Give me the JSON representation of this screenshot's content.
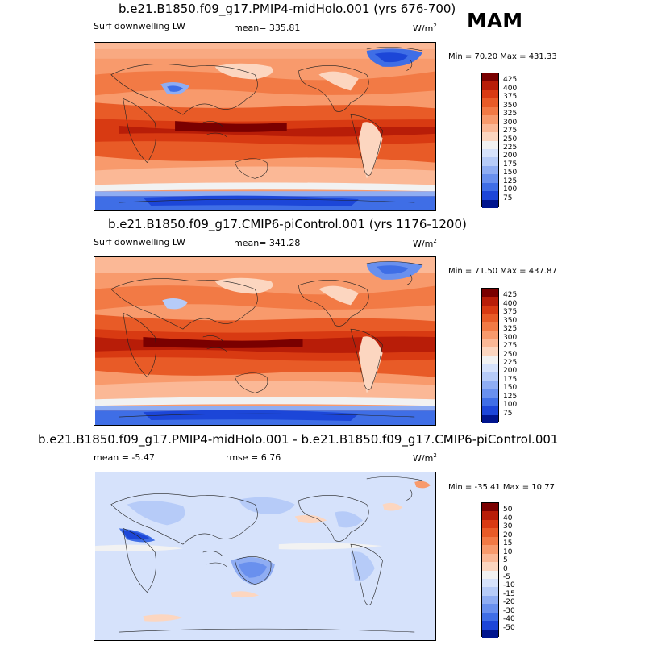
{
  "season_label": "MAM",
  "panels": [
    {
      "id": "top",
      "title": "b.e21.B1850.f09_g17.PMIP4-midHolo.001 (yrs 676-700)",
      "variable": "Surf downwelling LW",
      "mean_label": "mean= 335.81",
      "rmse_label": "",
      "units": "W/m",
      "units_sup": "2",
      "minmax": "Min =  70.20 Max = 431.33"
    },
    {
      "id": "middle",
      "title": "b.e21.B1850.f09_g17.CMIP6-piControl.001 (yrs 1176-1200)",
      "variable": "Surf downwelling LW",
      "mean_label": "mean= 341.28",
      "rmse_label": "",
      "units": "W/m",
      "units_sup": "2",
      "minmax": "Min =  71.50 Max = 437.87"
    },
    {
      "id": "bottom",
      "title": "b.e21.B1850.f09_g17.PMIP4-midHolo.001 - b.e21.B1850.f09_g17.CMIP6-piControl.001",
      "variable": "",
      "mean_label": "mean =  -5.47",
      "rmse_label": "rmse =   6.76",
      "units": "W/m",
      "units_sup": "2",
      "minmax": "Min = -35.41 Max =  10.77"
    }
  ],
  "chart_data": [
    {
      "type": "heatmap",
      "title": "b.e21.B1850.f09_g17.PMIP4-midHolo.001 (yrs 676-700)",
      "variable": "Surf downwelling LW",
      "units": "W/m2",
      "mean": 335.81,
      "min": 70.2,
      "max": 431.33,
      "colorbar_levels": [
        425,
        400,
        375,
        350,
        325,
        300,
        275,
        250,
        225,
        200,
        175,
        150,
        125,
        100,
        75
      ],
      "colorbar_colors": [
        "#7a0000",
        "#b81d08",
        "#d83a12",
        "#e85b27",
        "#f27a45",
        "#f89a6c",
        "#fbb896",
        "#fcd6c0",
        "#f2f2f2",
        "#d6e2fb",
        "#b6cbf8",
        "#8fadf3",
        "#6990ee",
        "#3f6ee6",
        "#1c46d8",
        "#00158e"
      ]
    },
    {
      "type": "heatmap",
      "title": "b.e21.B1850.f09_g17.CMIP6-piControl.001 (yrs 1176-1200)",
      "variable": "Surf downwelling LW",
      "units": "W/m2",
      "mean": 341.28,
      "min": 71.5,
      "max": 437.87,
      "colorbar_levels": [
        425,
        400,
        375,
        350,
        325,
        300,
        275,
        250,
        225,
        200,
        175,
        150,
        125,
        100,
        75
      ],
      "colorbar_colors": [
        "#7a0000",
        "#b81d08",
        "#d83a12",
        "#e85b27",
        "#f27a45",
        "#f89a6c",
        "#fbb896",
        "#fcd6c0",
        "#f2f2f2",
        "#d6e2fb",
        "#b6cbf8",
        "#8fadf3",
        "#6990ee",
        "#3f6ee6",
        "#1c46d8",
        "#00158e"
      ]
    },
    {
      "type": "heatmap",
      "title": "b.e21.B1850.f09_g17.PMIP4-midHolo.001 - b.e21.B1850.f09_g17.CMIP6-piControl.001",
      "units": "W/m2",
      "mean": -5.47,
      "rmse": 6.76,
      "min": -35.41,
      "max": 10.77,
      "colorbar_levels": [
        50,
        40,
        30,
        20,
        15,
        10,
        5,
        0,
        -5,
        -10,
        -15,
        -20,
        -30,
        -40,
        -50
      ],
      "colorbar_colors": [
        "#7a0000",
        "#b81d08",
        "#d83a12",
        "#e85b27",
        "#f27a45",
        "#f89a6c",
        "#fbb896",
        "#fcd6c0",
        "#f2f2f2",
        "#d6e2fb",
        "#b6cbf8",
        "#8fadf3",
        "#6990ee",
        "#3f6ee6",
        "#1c46d8",
        "#00158e"
      ]
    }
  ]
}
